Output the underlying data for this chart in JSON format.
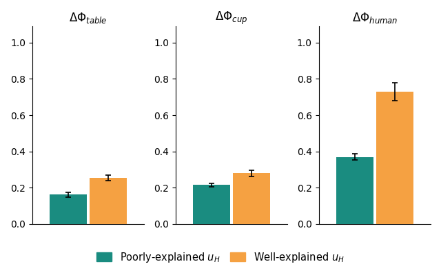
{
  "subplots": [
    {
      "title_subscript": "table",
      "bars": [
        {
          "value": 0.163,
          "error": 0.013,
          "color": "#1a8c80"
        },
        {
          "value": 0.255,
          "error": 0.014,
          "color": "#f5a142"
        }
      ],
      "ylim": [
        0.0,
        1.09
      ],
      "yticks": [
        0.0,
        0.2,
        0.4,
        0.6,
        0.8,
        1.0
      ]
    },
    {
      "title_subscript": "cup",
      "bars": [
        {
          "value": 0.215,
          "error": 0.009,
          "color": "#1a8c80"
        },
        {
          "value": 0.28,
          "error": 0.018,
          "color": "#f5a142"
        }
      ],
      "ylim": [
        0.0,
        1.09
      ],
      "yticks": [
        0.0,
        0.2,
        0.4,
        0.6,
        0.8,
        1.0
      ]
    },
    {
      "title_subscript": "human",
      "bars": [
        {
          "value": 0.37,
          "error": 0.018,
          "color": "#1a8c80"
        },
        {
          "value": 0.73,
          "error": 0.048,
          "color": "#f5a142"
        }
      ],
      "ylim": [
        0.0,
        1.09
      ],
      "yticks": [
        0.0,
        0.2,
        0.4,
        0.6,
        0.8,
        1.0
      ]
    }
  ],
  "legend_labels": [
    "Poorly-explained $u_H$",
    "Well-explained $u_H$"
  ],
  "legend_colors": [
    "#1a8c80",
    "#f5a142"
  ],
  "bar_width": 0.32,
  "bar_positions": [
    0.33,
    0.67
  ],
  "xlim": [
    0.02,
    0.98
  ],
  "background_color": "#ffffff",
  "title_fontsize": 12,
  "tick_fontsize": 10,
  "legend_fontsize": 10.5,
  "capsize": 3,
  "error_linewidth": 1.2
}
